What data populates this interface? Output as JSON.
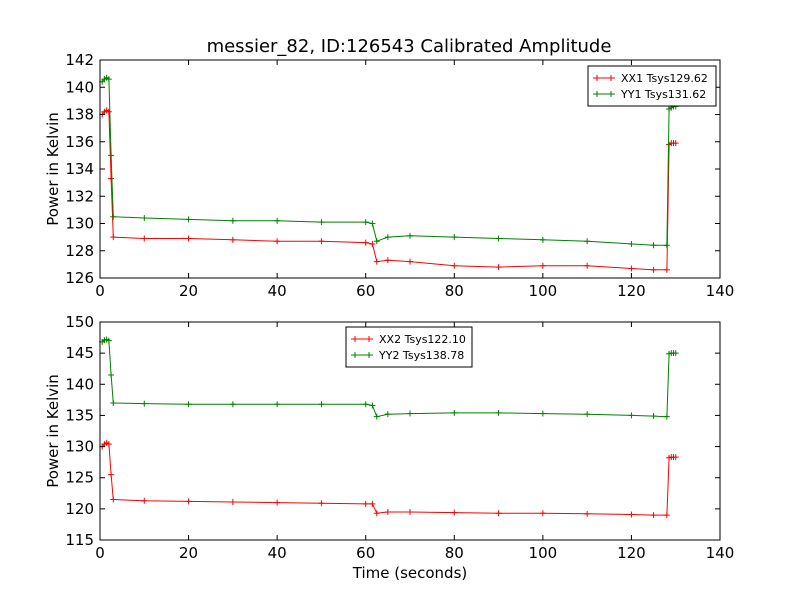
{
  "title": "messier_82, ID:126543 Calibrated Amplitude",
  "chart_data": [
    {
      "type": "line",
      "ylabel": "Power in Kelvin",
      "xlabel": "",
      "xlim": [
        0,
        140
      ],
      "ylim": [
        126,
        142
      ],
      "xticks": [
        "0",
        "20",
        "40",
        "60",
        "80",
        "100",
        "120",
        "140"
      ],
      "yticks": [
        "126",
        "128",
        "130",
        "132",
        "134",
        "136",
        "138",
        "140",
        "142"
      ],
      "legend_position": "top-right",
      "series": [
        {
          "name": "XX1 Tsys129.62",
          "color": "#ff0000",
          "x": [
            0.5,
            1.0,
            1.5,
            2.0,
            2.5,
            3.0,
            10,
            20,
            30,
            40,
            50,
            60,
            61.5,
            62.5,
            65,
            70,
            80,
            90,
            100,
            110,
            120,
            125,
            128,
            128.5,
            129,
            129.5,
            130
          ],
          "y": [
            138.0,
            138.2,
            138.3,
            138.2,
            133.3,
            129.0,
            128.9,
            128.9,
            128.8,
            128.7,
            128.7,
            128.6,
            128.5,
            127.2,
            127.3,
            127.2,
            126.9,
            126.8,
            126.9,
            126.9,
            126.7,
            126.6,
            126.6,
            135.8,
            135.9,
            135.9,
            135.9
          ]
        },
        {
          "name": "YY1 Tsys131.62",
          "color": "#008000",
          "x": [
            0.5,
            1.0,
            1.5,
            2.0,
            2.5,
            3.0,
            10,
            20,
            30,
            40,
            50,
            60,
            61.5,
            62.5,
            65,
            70,
            80,
            90,
            100,
            110,
            120,
            125,
            128,
            128.5,
            129,
            129.5,
            130
          ],
          "y": [
            140.4,
            140.6,
            140.7,
            140.6,
            135.0,
            130.5,
            130.4,
            130.3,
            130.2,
            130.2,
            130.1,
            130.1,
            130.0,
            128.7,
            129.0,
            129.1,
            129.0,
            128.9,
            128.8,
            128.7,
            128.5,
            128.4,
            128.4,
            138.4,
            138.5,
            138.6,
            138.6
          ]
        }
      ]
    },
    {
      "type": "line",
      "ylabel": "Power in Kelvin",
      "xlabel": "Time (seconds)",
      "xlim": [
        0,
        140
      ],
      "ylim": [
        115,
        150
      ],
      "xticks": [
        "0",
        "20",
        "40",
        "60",
        "80",
        "100",
        "120",
        "140"
      ],
      "yticks": [
        "115",
        "120",
        "125",
        "130",
        "135",
        "140",
        "145",
        "150"
      ],
      "legend_position": "top-center",
      "series": [
        {
          "name": "XX2 Tsys122.10",
          "color": "#ff0000",
          "x": [
            0.5,
            1.0,
            1.5,
            2.0,
            2.5,
            3.0,
            10,
            20,
            30,
            40,
            50,
            60,
            61.5,
            62.5,
            65,
            70,
            80,
            90,
            100,
            110,
            120,
            125,
            128,
            128.5,
            129,
            129.5,
            130
          ],
          "y": [
            130.0,
            130.4,
            130.6,
            130.4,
            125.5,
            121.5,
            121.3,
            121.2,
            121.1,
            121.0,
            120.9,
            120.8,
            120.8,
            119.3,
            119.5,
            119.5,
            119.4,
            119.3,
            119.3,
            119.2,
            119.1,
            119.0,
            119.0,
            128.2,
            128.3,
            128.3,
            128.3
          ]
        },
        {
          "name": "YY2 Tsys138.78",
          "color": "#008000",
          "x": [
            0.5,
            1.0,
            1.5,
            2.0,
            2.5,
            3.0,
            10,
            20,
            30,
            40,
            50,
            60,
            61.5,
            62.5,
            65,
            70,
            80,
            90,
            100,
            110,
            120,
            125,
            128,
            128.5,
            129,
            129.5,
            130
          ],
          "y": [
            146.8,
            147.1,
            147.2,
            147.0,
            141.5,
            137.0,
            136.9,
            136.8,
            136.8,
            136.8,
            136.8,
            136.8,
            136.6,
            134.8,
            135.2,
            135.3,
            135.4,
            135.4,
            135.3,
            135.2,
            135.0,
            134.9,
            134.8,
            144.9,
            145.0,
            145.0,
            145.0
          ]
        }
      ]
    }
  ]
}
